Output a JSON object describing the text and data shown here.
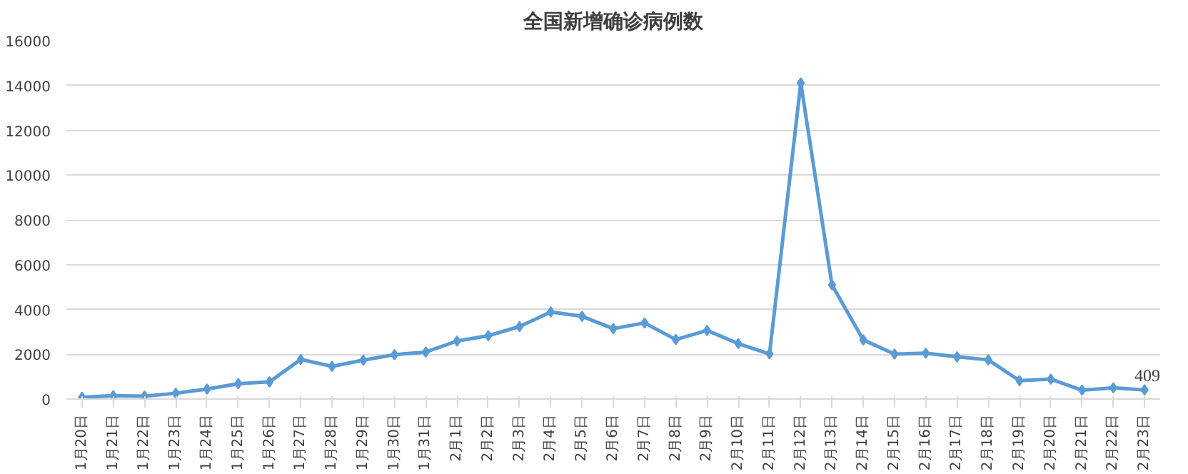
{
  "chart_data": {
    "type": "line",
    "title": "全国新增确诊病例数",
    "categories": [
      "1月20日",
      "1月21日",
      "1月22日",
      "1月23日",
      "1月24日",
      "1月25日",
      "1月26日",
      "1月27日",
      "1月28日",
      "1月29日",
      "1月30日",
      "1月31日",
      "2月1日",
      "2月2日",
      "2月3日",
      "2月4日",
      "2月5日",
      "2月6日",
      "2月7日",
      "2月8日",
      "2月9日",
      "2月10日",
      "2月11日",
      "2月12日",
      "2月13日",
      "2月14日",
      "2月15日",
      "2月16日",
      "2月17日",
      "2月18日",
      "2月19日",
      "2月20日",
      "2月21日",
      "2月22日",
      "2月23日"
    ],
    "series": [
      {
        "color": "#5b9bd5",
        "values": [
          77,
          149,
          131,
          259,
          444,
          688,
          769,
          1771,
          1459,
          1737,
          1981,
          2099,
          2590,
          2829,
          3235,
          3887,
          3694,
          3143,
          3399,
          2656,
          3062,
          2478,
          2015,
          14108,
          5090,
          2641,
          2009,
          2048,
          1886,
          1749,
          820,
          889,
          397,
          500,
          409
        ],
        "value_labels": [
          null,
          null,
          null,
          null,
          null,
          null,
          null,
          null,
          null,
          null,
          null,
          null,
          null,
          null,
          null,
          null,
          null,
          null,
          null,
          null,
          null,
          null,
          null,
          null,
          null,
          null,
          null,
          null,
          null,
          null,
          null,
          null,
          null,
          null,
          "409"
        ]
      }
    ],
    "ylim": [
      0,
      16000
    ],
    "yticks": [
      0,
      2000,
      4000,
      6000,
      8000,
      10000,
      12000,
      14000,
      16000
    ],
    "grid": "y",
    "marker": "diamond",
    "line_style": "solid"
  }
}
